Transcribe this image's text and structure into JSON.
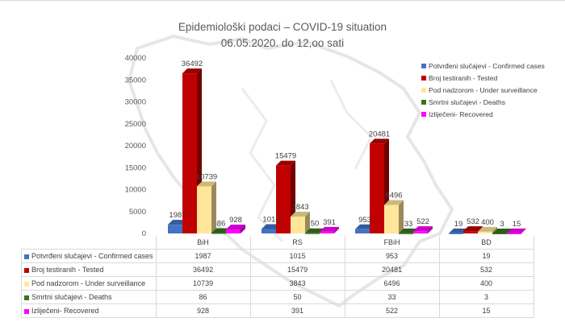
{
  "chart_data": {
    "type": "bar",
    "style": "3d-clustered-column",
    "title": "Epidemiološki podaci – COVID-19 situation",
    "subtitle": "06.05.2020. do 12,oo sati",
    "categories": [
      "BiH",
      "RS",
      "FBiH",
      "BD"
    ],
    "series": [
      {
        "name": "Potvrđeni slučajevi - Confirmed cases",
        "color": "#4472c4",
        "values": [
          1987,
          1015,
          953,
          19
        ]
      },
      {
        "name": "Broj testiranih - Tested",
        "color": "#c00000",
        "values": [
          36492,
          15479,
          20481,
          532
        ]
      },
      {
        "name": "Pod nadzorom - Under surveillance",
        "color": "#ffe699",
        "values": [
          10739,
          3843,
          6496,
          400
        ]
      },
      {
        "name": "Smrtni slučajevi - Deaths",
        "color": "#38761d",
        "values": [
          86,
          50,
          33,
          3
        ]
      },
      {
        "name": "Izliječeni- Recovered",
        "color": "#ff00ff",
        "values": [
          928,
          391,
          522,
          15
        ]
      }
    ],
    "xlabel": "",
    "ylabel": "",
    "ylim": [
      0,
      40000
    ],
    "yticks": [
      0,
      5000,
      10000,
      15000,
      20000,
      25000,
      30000,
      35000,
      40000
    ],
    "grid": false,
    "legend": "right",
    "data_labels": true,
    "data_table": true
  }
}
